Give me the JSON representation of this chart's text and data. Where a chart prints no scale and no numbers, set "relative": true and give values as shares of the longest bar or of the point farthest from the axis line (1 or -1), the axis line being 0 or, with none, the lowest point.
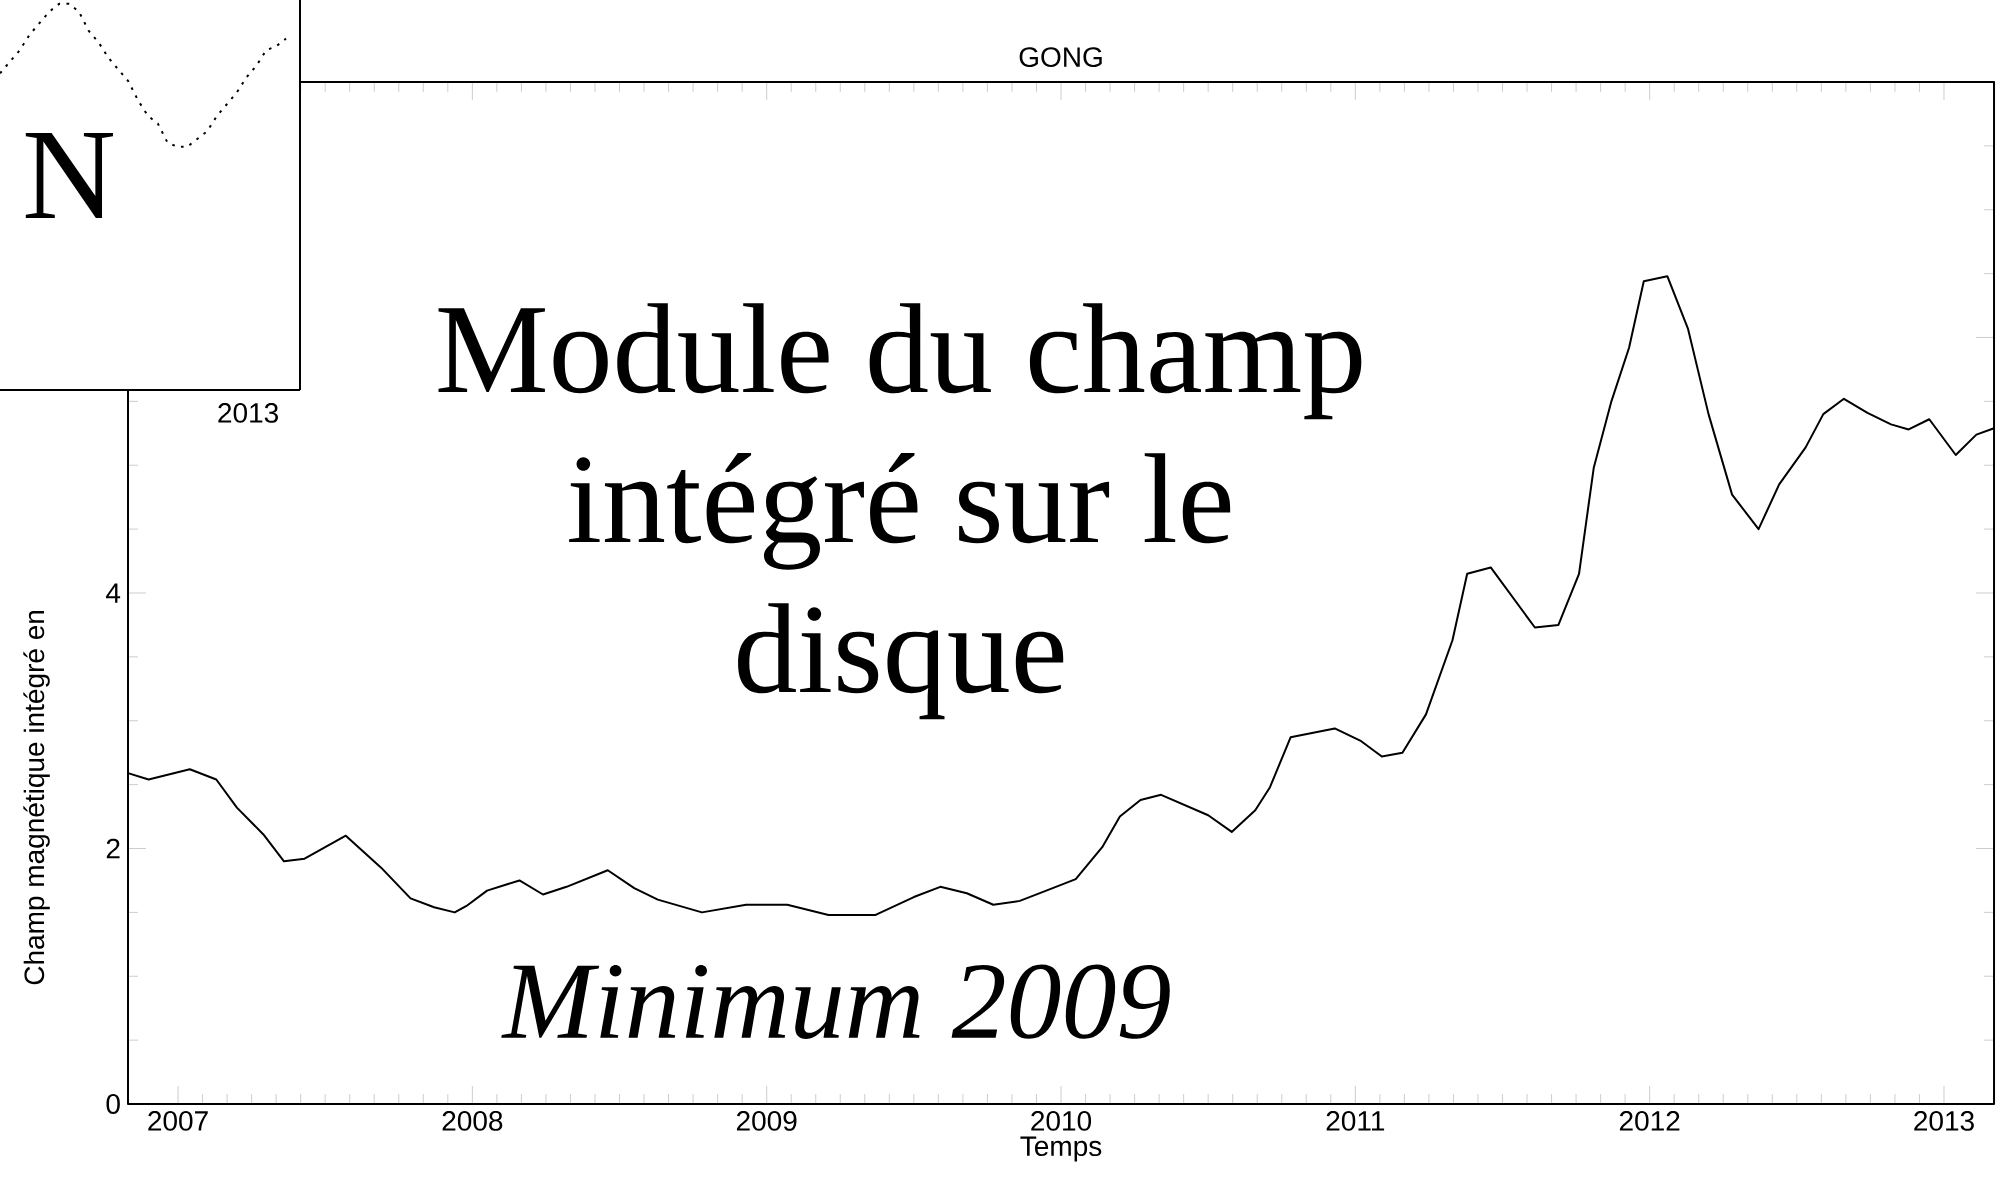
{
  "chart_data": [
    {
      "type": "line",
      "relative": true,
      "line_style": "dotted",
      "annotations": [
        "N",
        "2013"
      ],
      "categories": [
        null,
        null,
        null,
        null,
        null,
        null,
        null,
        null,
        null,
        null,
        null,
        null,
        null,
        null,
        null,
        null,
        null,
        null,
        null,
        null,
        null,
        null,
        null,
        null,
        null,
        null,
        null,
        null,
        null,
        null
      ],
      "series": [
        {
          "color": "#000000",
          "values": [
            0.82,
            0.85,
            0.88,
            0.92,
            0.95,
            0.98,
            1.0,
            1.0,
            0.98,
            0.93,
            0.9,
            0.86,
            0.83,
            0.8,
            0.75,
            0.71,
            0.69,
            0.64,
            0.63,
            0.63,
            0.65,
            0.67,
            0.71,
            0.74,
            0.77,
            0.81,
            0.84,
            0.88,
            0.89,
            0.91
          ]
        }
      ]
    },
    {
      "type": "line",
      "title": "GONG",
      "xlabel": "Temps",
      "ylabel": "Champ magnétique intégré en",
      "annotations": [
        "Module du champ intégré sur le disque",
        "Minimum 2009"
      ],
      "x": [
        2006.83,
        2006.9,
        2007.04,
        2007.13,
        2007.2,
        2007.29,
        2007.36,
        2007.43,
        2007.57,
        2007.69,
        2007.79,
        2007.87,
        2007.94,
        2007.98,
        2008.05,
        2008.16,
        2008.24,
        2008.32,
        2008.46,
        2008.55,
        2008.63,
        2008.78,
        2008.93,
        2009.07,
        2009.21,
        2009.37,
        2009.5,
        2009.59,
        2009.68,
        2009.77,
        2009.86,
        2009.95,
        2010.05,
        2010.14,
        2010.2,
        2010.27,
        2010.34,
        2010.5,
        2010.58,
        2010.66,
        2010.71,
        2010.78,
        2010.93,
        2011.02,
        2011.09,
        2011.16,
        2011.24,
        2011.33,
        2011.38,
        2011.46,
        2011.61,
        2011.69,
        2011.76,
        2011.81,
        2011.87,
        2011.93,
        2011.98,
        2012.06,
        2012.13,
        2012.2,
        2012.28,
        2012.37,
        2012.44,
        2012.53,
        2012.59,
        2012.66,
        2012.74,
        2012.82,
        2012.88,
        2012.95,
        2013.04,
        2013.11,
        2013.17
      ],
      "series": [
        {
          "color": "#000000",
          "values": [
            2.59,
            2.54,
            2.62,
            2.54,
            2.32,
            2.11,
            1.9,
            1.92,
            2.1,
            1.85,
            1.61,
            1.54,
            1.5,
            1.55,
            1.67,
            1.75,
            1.64,
            1.7,
            1.83,
            1.69,
            1.6,
            1.5,
            1.56,
            1.56,
            1.48,
            1.48,
            1.62,
            1.7,
            1.65,
            1.56,
            1.59,
            1.67,
            1.76,
            2.01,
            2.25,
            2.38,
            2.42,
            2.26,
            2.13,
            2.3,
            2.48,
            2.87,
            2.94,
            2.84,
            2.72,
            2.75,
            3.05,
            3.63,
            4.15,
            4.2,
            3.73,
            3.75,
            4.15,
            4.98,
            5.5,
            5.92,
            6.44,
            6.48,
            6.07,
            5.4,
            4.77,
            4.5,
            4.85,
            5.14,
            5.4,
            5.52,
            5.41,
            5.32,
            5.28,
            5.36,
            5.08,
            5.24,
            5.29
          ]
        }
      ],
      "xlim": [
        2006.83,
        2013.17
      ],
      "xticks": [
        2007,
        2008,
        2009,
        2010,
        2011,
        2012,
        2013
      ],
      "ylim": [
        0,
        8
      ],
      "yticks": [
        0,
        2,
        4,
        {
          "value": 6,
          "label": null
        },
        {
          "value": 8,
          "label": null
        }
      ]
    }
  ]
}
